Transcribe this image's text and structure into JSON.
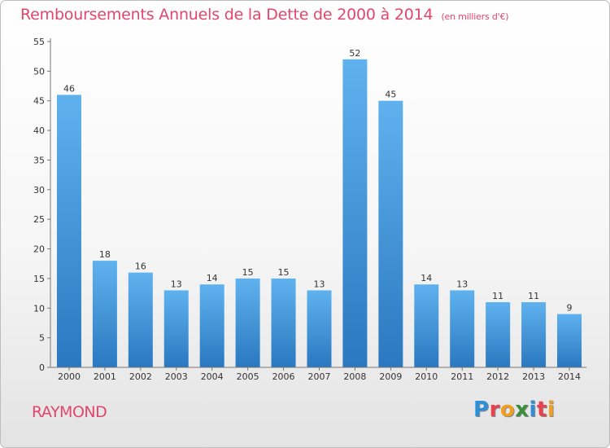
{
  "page": {
    "title": "Remboursements Annuels de la Dette de 2000 à 2014",
    "unit": "(en milliers d'€)",
    "commune": "RAYMOND",
    "brand": "Proxiti",
    "brand_colors": [
      "#2e8fd8",
      "#e8434f",
      "#f0a020",
      "#3a8f3a",
      "#2e8fd8",
      "#e8434f",
      "#f0a020"
    ]
  },
  "chart_data": {
    "type": "bar",
    "title": "Remboursements Annuels de la Dette de 2000 à 2014",
    "subtitle": "(en milliers d'€)",
    "xlabel": "",
    "ylabel": "",
    "categories": [
      "2000",
      "2001",
      "2002",
      "2003",
      "2004",
      "2005",
      "2006",
      "2007",
      "2008",
      "2009",
      "2010",
      "2011",
      "2012",
      "2013",
      "2014"
    ],
    "values": [
      46,
      18,
      16,
      13,
      14,
      15,
      15,
      13,
      52,
      45,
      14,
      13,
      11,
      11,
      9
    ],
    "ylim": [
      0,
      55
    ],
    "yticks": [
      0,
      5,
      10,
      15,
      20,
      25,
      30,
      35,
      40,
      45,
      50,
      55
    ],
    "grid": false,
    "legend": "none",
    "bar_color_top": "#5fb2ee",
    "bar_color_bottom": "#2a78c0",
    "title_color": "#e2466c"
  }
}
